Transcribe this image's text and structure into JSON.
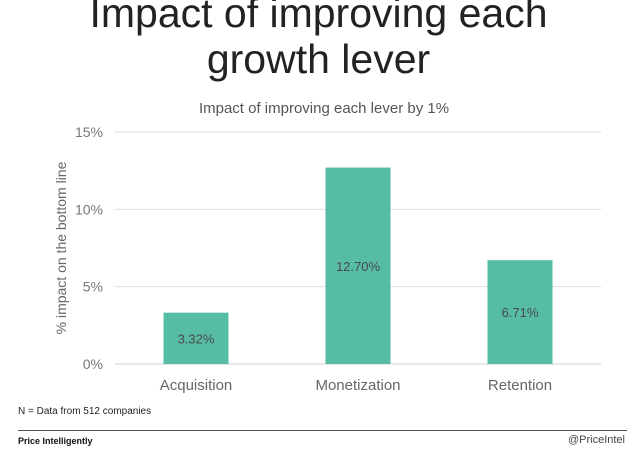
{
  "slide": {
    "title_line1": "Impact of improving each",
    "title_line2": "growth lever"
  },
  "chart_data": {
    "type": "bar",
    "title": "Impact of improving each lever by 1%",
    "ylabel": "% impact on the bottom line",
    "xlabel": "",
    "categories": [
      "Acquisition",
      "Monetization",
      "Retention"
    ],
    "values": [
      3.32,
      12.7,
      6.71
    ],
    "data_labels": [
      "3.32%",
      "12.70%",
      "6.71%"
    ],
    "ylim": [
      0,
      15
    ],
    "yticks": [
      0,
      5,
      10,
      15
    ],
    "ytick_labels": [
      "0%",
      "5%",
      "10%",
      "15%"
    ],
    "grid": true,
    "bar_color": "#56bca4"
  },
  "footer": {
    "note": "N = Data from 512 companies",
    "brand": "Price Intelligently",
    "handle": "@PriceIntel"
  }
}
